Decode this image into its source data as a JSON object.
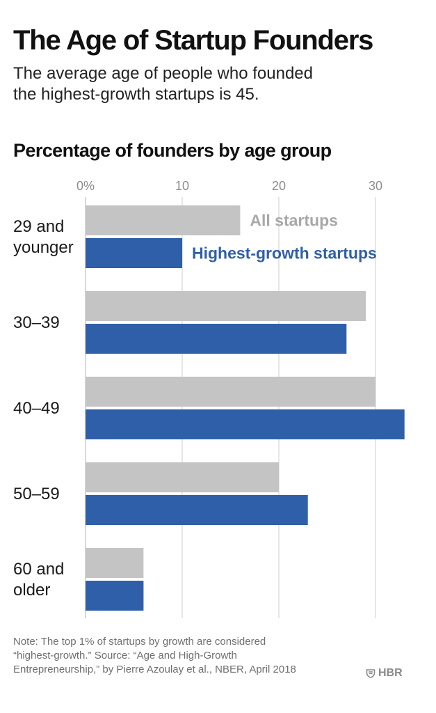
{
  "header": {
    "title": "The Age of Startup Founders",
    "subtitle_line1": "The average age of people who founded",
    "subtitle_line2": "the highest-growth startups is 45."
  },
  "chart_data": {
    "type": "bar",
    "orientation": "horizontal",
    "title": "Percentage of founders by age group",
    "xlabel": "",
    "ylabel": "",
    "xlim": [
      0,
      33
    ],
    "ticks": [
      {
        "value": 0,
        "label": "0%"
      },
      {
        "value": 10,
        "label": "10"
      },
      {
        "value": 20,
        "label": "20"
      },
      {
        "value": 30,
        "label": "30"
      }
    ],
    "grid": true,
    "legend_placement": "inline next to first category",
    "categories": [
      {
        "lines": [
          "29 and",
          "younger"
        ]
      },
      {
        "lines": [
          "30–39"
        ]
      },
      {
        "lines": [
          "40–49"
        ]
      },
      {
        "lines": [
          "50–59"
        ]
      },
      {
        "lines": [
          "60 and",
          "older"
        ]
      }
    ],
    "series": [
      {
        "name": "All startups",
        "color": "#c4c4c4",
        "label_color": "#a8a8a8",
        "values": [
          16,
          29,
          30,
          20,
          6
        ]
      },
      {
        "name": "Highest-growth startups",
        "color": "#2f5fa8",
        "label_color": "#2f5fa8",
        "values": [
          10,
          27,
          33,
          23,
          6
        ]
      }
    ]
  },
  "footer": {
    "note_line1": "Note: The top 1% of startups by growth are considered",
    "note_line2": "“highest-growth.” Source: “Age and High-Growth",
    "note_line3": "Entrepreneurship,” by Pierre Azoulay et al., NBER, April 2018",
    "logo_text": "HBR",
    "logo_icon": "hbr-shield-icon"
  }
}
